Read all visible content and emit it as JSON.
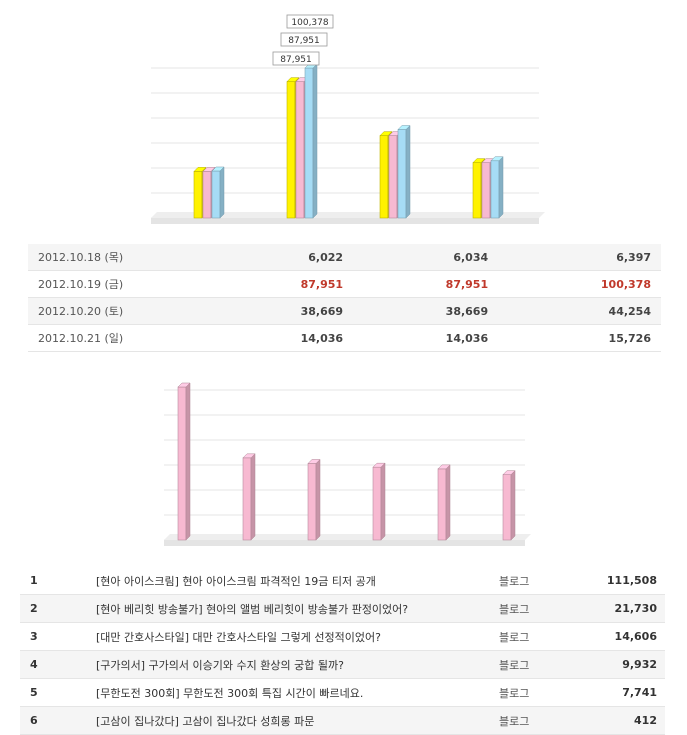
{
  "chart_data": [
    {
      "type": "bar",
      "categories": [
        "2012.10.18 (목)",
        "2012.10.19 (금)",
        "2012.10.20 (토)",
        "2012.10.21 (일)"
      ],
      "series": [
        {
          "values": [
            6022,
            87951,
            38669,
            14036
          ],
          "color": "#fff200"
        },
        {
          "values": [
            6034,
            87951,
            38669,
            14036
          ],
          "color": "#f7b9d1"
        },
        {
          "values": [
            6397,
            100378,
            44254,
            15726
          ],
          "color": "#a6dcf5"
        }
      ],
      "data_labels": [
        "87,951",
        "87,951",
        "100,378"
      ],
      "grid": true
    },
    {
      "type": "bar",
      "categories": [
        "1",
        "2",
        "3",
        "4",
        "5",
        "6"
      ],
      "series": [
        {
          "values": [
            111508,
            21730,
            14606,
            9932,
            7741,
            412
          ],
          "color": "#f7b9d1"
        }
      ],
      "grid": true
    }
  ],
  "stats_table": [
    {
      "date": "2012.10.18 (목)",
      "a": "6,022",
      "b": "6,034",
      "c": "6,397"
    },
    {
      "date": "2012.10.19 (금)",
      "a": "87,951",
      "b": "87,951",
      "c": "100,378"
    },
    {
      "date": "2012.10.20 (토)",
      "a": "38,669",
      "b": "38,669",
      "c": "44,254"
    },
    {
      "date": "2012.10.21 (일)",
      "a": "14,036",
      "b": "14,036",
      "c": "15,726"
    }
  ],
  "rank_table": [
    {
      "rank": "1",
      "title": "[현아 아이스크림] 현아 아이스크림 파격적인 19금 티저 공개",
      "source": "블로그",
      "count": "111,508"
    },
    {
      "rank": "2",
      "title": "[현아 베리힛 방송불가] 현아의 앨범 베리힛이 방송불가 판정이었어?",
      "source": "블로그",
      "count": "21,730"
    },
    {
      "rank": "3",
      "title": "[대만 간호사스타일] 대만 간호사스타일 그렇게 선정적이었어?",
      "source": "블로그",
      "count": "14,606"
    },
    {
      "rank": "4",
      "title": "[구가의서] 구가의서 이승기와 수지 환상의 궁합 될까?",
      "source": "블로그",
      "count": "9,932"
    },
    {
      "rank": "5",
      "title": "[무한도전 300회] 무한도전 300회 특집 시간이 빠르네요.",
      "source": "블로그",
      "count": "7,741"
    },
    {
      "rank": "6",
      "title": "[고삼이 집나갔다] 고삼이 집나갔다 성희롱 파문",
      "source": "블로그",
      "count": "412"
    }
  ]
}
